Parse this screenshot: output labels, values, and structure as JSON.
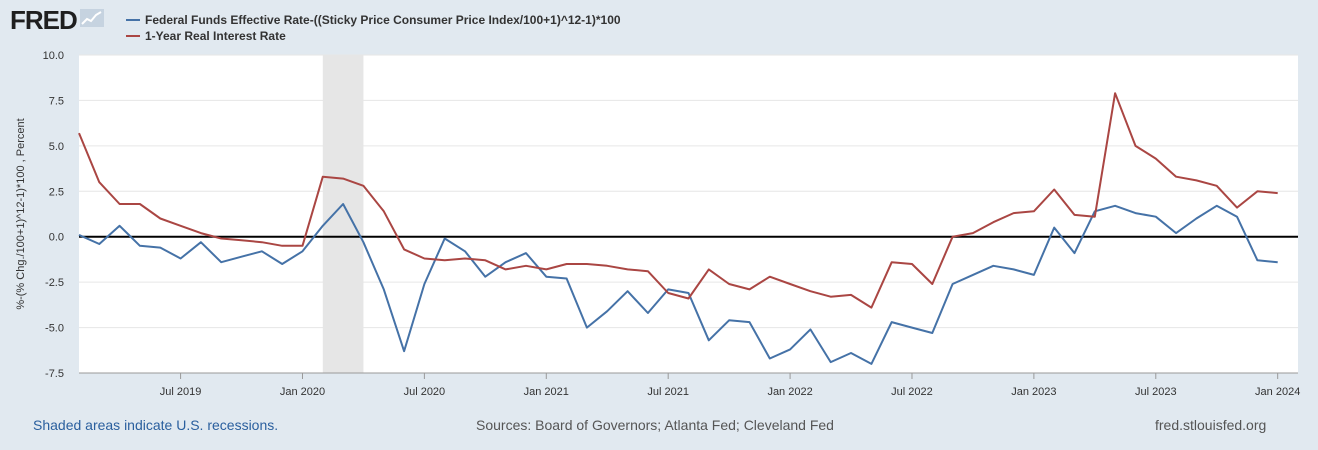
{
  "header": {
    "logo_text": "FRED",
    "logo_icon": "line-chart-icon"
  },
  "colors": {
    "series1": "#4572a7",
    "series2": "#aa4643",
    "recession": "#e6e6e6",
    "zero_line": "#000000",
    "background": "#e1e9f0",
    "plot_bg": "#ffffff"
  },
  "footer": {
    "recession_note": "Shaded areas indicate U.S. recessions.",
    "sources": "Sources: Board of Governors; Atlanta Fed; Cleveland Fed",
    "site": "fred.stlouisfed.org"
  },
  "chart_data": {
    "type": "line",
    "ylabel": "%-(% Chg./100+1)^12-1)*100 , Percent",
    "xlabel": "",
    "ylim": [
      -7.5,
      10.0
    ],
    "xlim": [
      "2019-02",
      "2024-02"
    ],
    "yticks": [
      {
        "value": 10.0,
        "label": "10.0"
      },
      {
        "value": 7.5,
        "label": "7.5"
      },
      {
        "value": 5.0,
        "label": "5.0"
      },
      {
        "value": 2.5,
        "label": "2.5"
      },
      {
        "value": 0.0,
        "label": "0.0"
      },
      {
        "value": -2.5,
        "label": "-2.5"
      },
      {
        "value": -5.0,
        "label": "-5.0"
      },
      {
        "value": -7.5,
        "label": "-7.5"
      }
    ],
    "xticks": [
      {
        "date": "2019-07",
        "label": "Jul 2019"
      },
      {
        "date": "2020-01",
        "label": "Jan 2020"
      },
      {
        "date": "2020-07",
        "label": "Jul 2020"
      },
      {
        "date": "2021-01",
        "label": "Jan 2021"
      },
      {
        "date": "2021-07",
        "label": "Jul 2021"
      },
      {
        "date": "2022-01",
        "label": "Jan 2022"
      },
      {
        "date": "2022-07",
        "label": "Jul 2022"
      },
      {
        "date": "2023-01",
        "label": "Jan 2023"
      },
      {
        "date": "2023-07",
        "label": "Jul 2023"
      },
      {
        "date": "2024-01",
        "label": "Jan 2024"
      }
    ],
    "recessions": [
      {
        "start": "2020-02",
        "end": "2020-04"
      }
    ],
    "grid": true,
    "legend_position": "top-left",
    "x": [
      "2019-02",
      "2019-03",
      "2019-04",
      "2019-05",
      "2019-06",
      "2019-07",
      "2019-08",
      "2019-09",
      "2019-10",
      "2019-11",
      "2019-12",
      "2020-01",
      "2020-02",
      "2020-03",
      "2020-04",
      "2020-05",
      "2020-06",
      "2020-07",
      "2020-08",
      "2020-09",
      "2020-10",
      "2020-11",
      "2020-12",
      "2021-01",
      "2021-02",
      "2021-03",
      "2021-04",
      "2021-05",
      "2021-06",
      "2021-07",
      "2021-08",
      "2021-09",
      "2021-10",
      "2021-11",
      "2021-12",
      "2022-01",
      "2022-02",
      "2022-03",
      "2022-04",
      "2022-05",
      "2022-06",
      "2022-07",
      "2022-08",
      "2022-09",
      "2022-10",
      "2022-11",
      "2022-12",
      "2023-01",
      "2023-02",
      "2023-03",
      "2023-04",
      "2023-05",
      "2023-06",
      "2023-07",
      "2023-08",
      "2023-09",
      "2023-10",
      "2023-11",
      "2023-12",
      "2024-01"
    ],
    "series": [
      {
        "name": "Federal Funds Effective Rate-((Sticky Price Consumer Price Index/100+1)^12-1)*100",
        "color": "#4572a7",
        "values": [
          0.1,
          -0.4,
          0.6,
          -0.5,
          -0.6,
          -1.2,
          -0.3,
          -1.4,
          -1.1,
          -0.8,
          -1.5,
          -0.8,
          0.6,
          1.8,
          -0.3,
          -2.9,
          -6.3,
          -2.6,
          -0.1,
          -0.8,
          -2.2,
          -1.4,
          -0.9,
          -2.2,
          -2.3,
          -5.0,
          -4.1,
          -3.0,
          -4.2,
          -2.9,
          -3.1,
          -5.7,
          -4.6,
          -4.7,
          -6.7,
          -6.2,
          -5.1,
          -6.9,
          -6.4,
          -7.0,
          -4.7,
          -5.0,
          -5.3,
          -2.6,
          -2.1,
          -1.6,
          -1.8,
          -2.1,
          0.5,
          -0.9,
          1.4,
          1.7,
          1.3,
          1.1,
          0.2,
          1.0,
          1.7,
          1.1,
          -1.3,
          -1.4
        ]
      },
      {
        "name": "1-Year Real Interest Rate",
        "color": "#aa4643",
        "values": [
          5.7,
          3.0,
          1.8,
          1.8,
          1.0,
          0.6,
          0.2,
          -0.1,
          -0.2,
          -0.3,
          -0.5,
          -0.5,
          3.3,
          3.2,
          2.8,
          1.4,
          -0.7,
          -1.2,
          -1.3,
          -1.2,
          -1.3,
          -1.8,
          -1.6,
          -1.8,
          -1.5,
          -1.5,
          -1.6,
          -1.8,
          -1.9,
          -3.1,
          -3.4,
          -1.8,
          -2.6,
          -2.9,
          -2.2,
          -2.6,
          -3.0,
          -3.3,
          -3.2,
          -3.9,
          -1.4,
          -1.5,
          -2.6,
          0.0,
          0.2,
          0.8,
          1.3,
          1.4,
          2.6,
          1.2,
          1.1,
          7.9,
          5.0,
          4.3,
          3.3,
          3.1,
          2.8,
          1.6,
          2.5,
          2.4
        ]
      }
    ]
  }
}
